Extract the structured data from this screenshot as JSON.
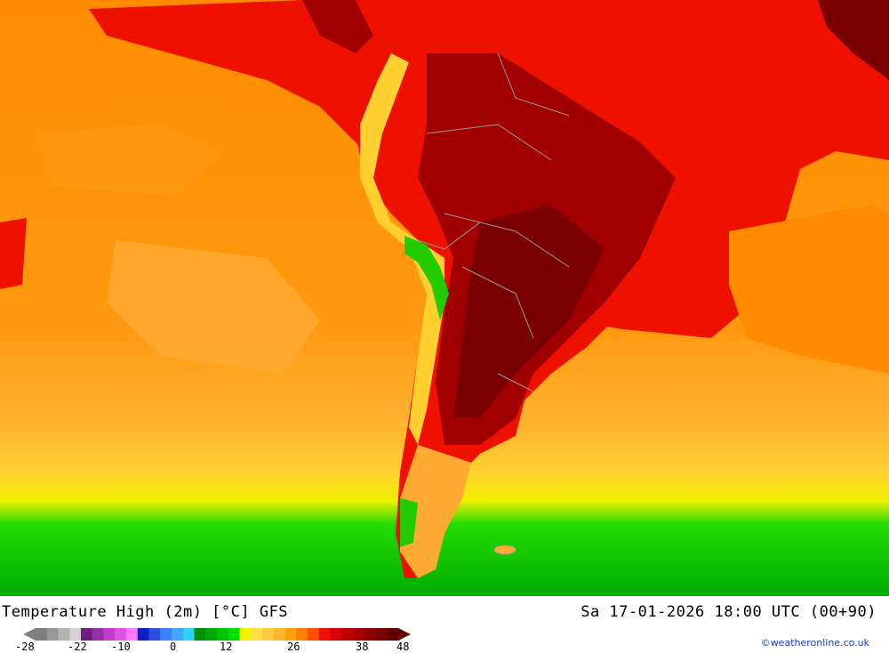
{
  "map": {
    "region": "South America",
    "colors": {
      "ocean_orange": "#ff8c00",
      "ocean_light_orange": "#ffaa33",
      "ocean_yellow": "#ffe030",
      "ocean_green": "#22cc00",
      "land_red": "#ee1100",
      "land_dark_red": "#a00000",
      "land_darkest": "#7a0000",
      "borders": "#999999"
    }
  },
  "title": "Temperature High (2m) [°C] GFS",
  "valid_time": "Sa 17-01-2026 18:00 UTC (00+90)",
  "legend": {
    "colors": [
      "#7f7f7f",
      "#989898",
      "#b4b4b4",
      "#d2d2d2",
      "#6e1f7e",
      "#9a2ea3",
      "#c43ccb",
      "#e052e6",
      "#ff7aff",
      "#1020c0",
      "#2a50e0",
      "#3a80ff",
      "#40a8ff",
      "#30d0f8",
      "#009000",
      "#00aa00",
      "#00c400",
      "#00e000",
      "#f0f000",
      "#ffe040",
      "#ffcc40",
      "#ffb830",
      "#ffa010",
      "#ff8000",
      "#ff5000",
      "#ee1000",
      "#d80000",
      "#c00000",
      "#a80000",
      "#900000",
      "#780000",
      "#600000"
    ],
    "ticks": [
      "-28",
      "-22",
      "-10",
      "0",
      "12",
      "26",
      "38",
      "48"
    ]
  },
  "credit": "©weatheronline.co.uk"
}
